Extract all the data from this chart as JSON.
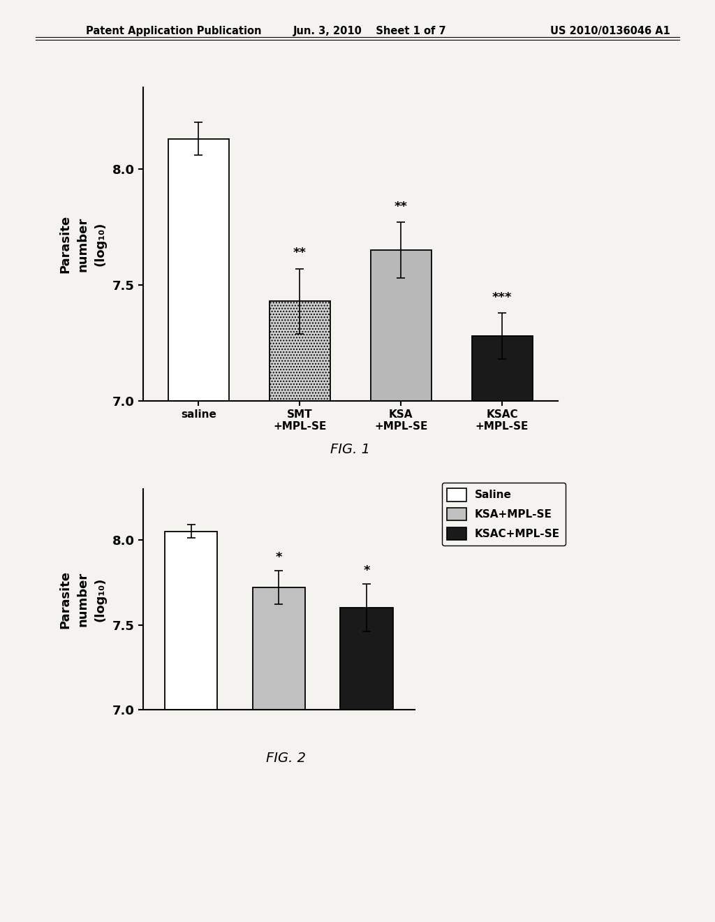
{
  "fig1": {
    "categories": [
      "saline",
      "SMT\n+MPL-SE",
      "KSA\n+MPL-SE",
      "KSAC\n+MPL-SE"
    ],
    "values": [
      8.13,
      7.43,
      7.65,
      7.28
    ],
    "errors": [
      0.07,
      0.14,
      0.12,
      0.1
    ],
    "bar_facecolors": [
      "white",
      "#d0d0d0",
      "#b8b8b8",
      "#1a1a1a"
    ],
    "bar_hatches": [
      "",
      "....",
      "",
      ""
    ],
    "bar_edgecolors": [
      "black",
      "black",
      "black",
      "black"
    ],
    "significance": [
      "",
      "**",
      "**",
      "***"
    ],
    "ylim": [
      7.0,
      8.35
    ],
    "yticks": [
      7.0,
      7.5,
      8.0
    ],
    "ylabel": "Parasite\nnumber\n(log₁₀)",
    "fig_label": "FIG. 1"
  },
  "fig2": {
    "categories": [
      "Saline",
      "KSA+MPL-SE",
      "KSAC+MPL-SE"
    ],
    "values": [
      8.05,
      7.72,
      7.6
    ],
    "errors": [
      0.04,
      0.1,
      0.14
    ],
    "bar_facecolors": [
      "white",
      "#c0c0c0",
      "#1a1a1a"
    ],
    "bar_hatches": [
      "",
      "",
      ""
    ],
    "bar_edgecolors": [
      "black",
      "black",
      "black"
    ],
    "significance": [
      "",
      "*",
      "*"
    ],
    "ylim": [
      7.0,
      8.3
    ],
    "yticks": [
      7.0,
      7.5,
      8.0
    ],
    "ylabel": "Parasite\nnumber\n(log₁₀)",
    "legend_labels": [
      "Saline",
      "KSA+MPL-SE",
      "KSAC+MPL-SE"
    ],
    "legend_facecolors": [
      "white",
      "#c0c0c0",
      "#1a1a1a"
    ],
    "fig_label": "FIG. 2"
  },
  "header_left": "Patent Application Publication",
  "header_center": "Jun. 3, 2010    Sheet 1 of 7",
  "header_right": "US 2010/0136046 A1",
  "bg_color": "#f5f3f0"
}
